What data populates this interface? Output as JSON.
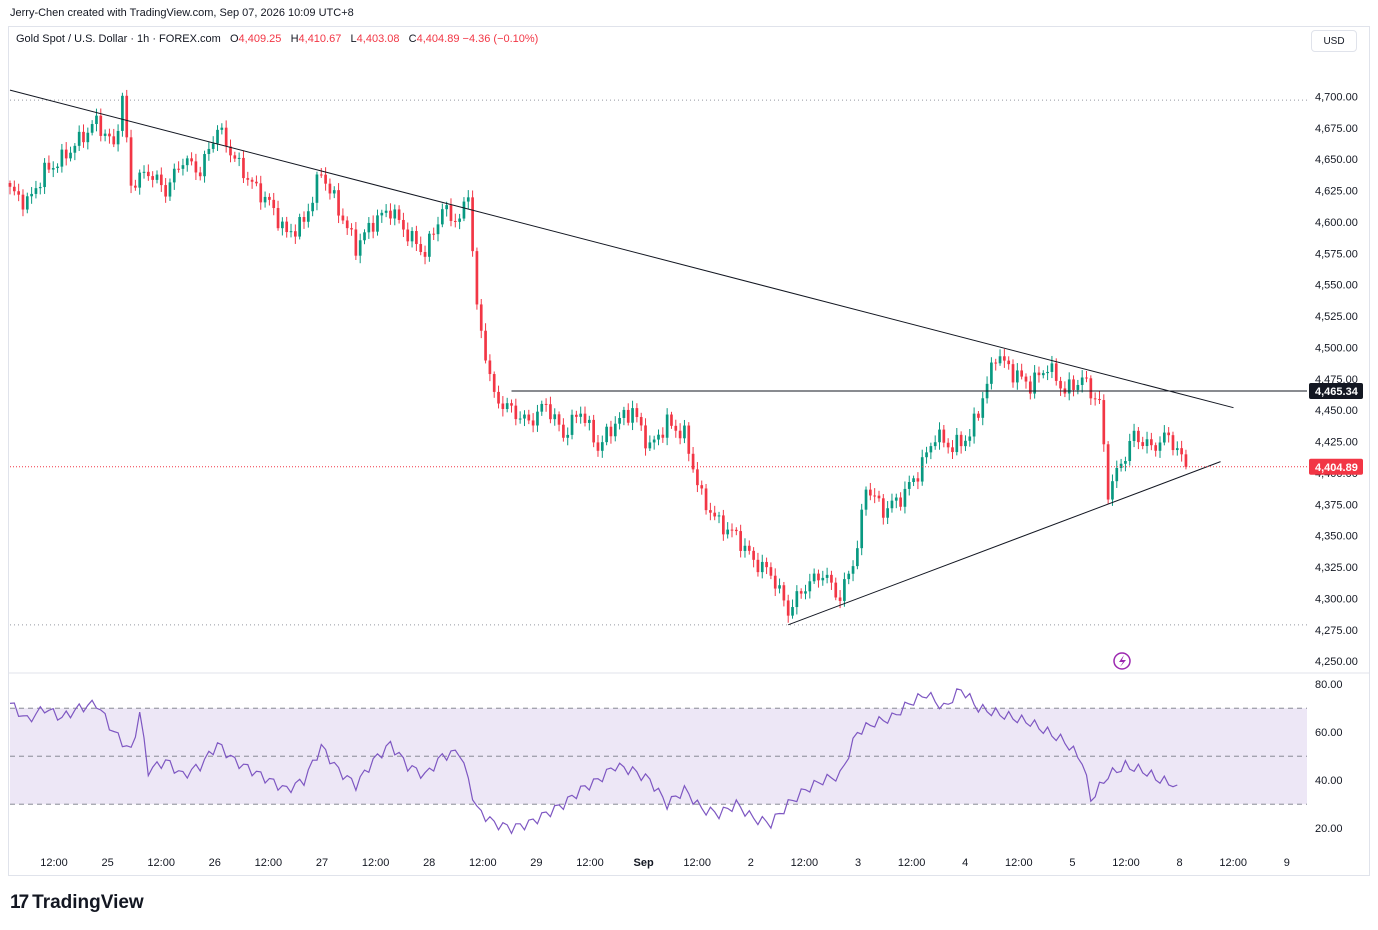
{
  "header": {
    "credit": "Jerry-Chen created with TradingView.com, Sep 07, 2026 10:09 UTC+8",
    "symbol": "Gold Spot / U.S. Dollar · 1h · FOREX.com",
    "ohlc": [
      {
        "k": "O",
        "v": "4,409.25"
      },
      {
        "k": "H",
        "v": "4,410.67"
      },
      {
        "k": "L",
        "v": "4,403.08"
      },
      {
        "k": "C",
        "v": "4,404.89"
      }
    ],
    "change": "−4.36 (−0.10%)",
    "currency": "USD"
  },
  "logo": {
    "mark": "17",
    "text": "TradingView"
  },
  "colors": {
    "up": "#089981",
    "down": "#f23645",
    "rsi": "#7e57c2",
    "rsi_band": "#ede7f6",
    "line": "#131722"
  },
  "chart_data": [
    {
      "type": "candlestick",
      "series": [
        {
          "name": "Gold Spot / U.S. Dollar",
          "ohlc_anchor_closes": [
            [
              0,
              4625
            ],
            [
              4,
              4615
            ],
            [
              8,
              4640
            ],
            [
              12,
              4650
            ],
            [
              16,
              4665
            ],
            [
              20,
              4680
            ],
            [
              24,
              4660
            ],
            [
              26,
              4698
            ],
            [
              28,
              4630
            ],
            [
              32,
              4640
            ],
            [
              36,
              4625
            ],
            [
              40,
              4650
            ],
            [
              44,
              4640
            ],
            [
              48,
              4675
            ],
            [
              52,
              4650
            ],
            [
              56,
              4630
            ],
            [
              60,
              4615
            ],
            [
              64,
              4590
            ],
            [
              68,
              4600
            ],
            [
              72,
              4640
            ],
            [
              76,
              4610
            ],
            [
              80,
              4580
            ],
            [
              84,
              4600
            ],
            [
              88,
              4610
            ],
            [
              92,
              4590
            ],
            [
              96,
              4575
            ],
            [
              100,
              4610
            ],
            [
              104,
              4600
            ],
            [
              106,
              4625
            ],
            [
              108,
              4530
            ],
            [
              112,
              4460
            ],
            [
              116,
              4450
            ],
            [
              120,
              4440
            ],
            [
              124,
              4455
            ],
            [
              128,
              4430
            ],
            [
              132,
              4450
            ],
            [
              136,
              4420
            ],
            [
              140,
              4440
            ],
            [
              144,
              4450
            ],
            [
              148,
              4420
            ],
            [
              152,
              4440
            ],
            [
              156,
              4430
            ],
            [
              160,
              4380
            ],
            [
              164,
              4360
            ],
            [
              168,
              4350
            ],
            [
              172,
              4330
            ],
            [
              176,
              4320
            ],
            [
              180,
              4290
            ],
            [
              184,
              4310
            ],
            [
              188,
              4320
            ],
            [
              192,
              4300
            ],
            [
              196,
              4340
            ],
            [
              198,
              4390
            ],
            [
              202,
              4370
            ],
            [
              206,
              4380
            ],
            [
              210,
              4400
            ],
            [
              214,
              4430
            ],
            [
              218,
              4420
            ],
            [
              222,
              4430
            ],
            [
              226,
              4470
            ],
            [
              228,
              4495
            ],
            [
              232,
              4480
            ],
            [
              236,
              4470
            ],
            [
              240,
              4485
            ],
            [
              244,
              4465
            ],
            [
              248,
              4475
            ],
            [
              252,
              4455
            ],
            [
              254,
              4385
            ],
            [
              256,
              4400
            ],
            [
              260,
              4430
            ],
            [
              264,
              4420
            ],
            [
              268,
              4430
            ],
            [
              272,
              4404.89
            ]
          ]
        }
      ],
      "x_ticks": [
        "12:00",
        "25",
        "12:00",
        "26",
        "12:00",
        "27",
        "12:00",
        "28",
        "12:00",
        "29",
        "12:00",
        "Sep",
        "12:00",
        "2",
        "12:00",
        "3",
        "12:00",
        "4",
        "12:00",
        "5",
        "12:00",
        "8",
        "12:00",
        "9"
      ],
      "y_ticks": [
        "4,700.00",
        "4,675.00",
        "4,650.00",
        "4,625.00",
        "4,600.00",
        "4,575.00",
        "4,550.00",
        "4,525.00",
        "4,500.00",
        "4,475.00",
        "4,450.00",
        "4,425.00",
        "4,400.00",
        "4,375.00",
        "4,350.00",
        "4,325.00",
        "4,300.00",
        "4,275.00",
        "4,250.00"
      ],
      "ylim": [
        4243,
        4733
      ],
      "price_labels": [
        {
          "price": 4465.34,
          "text": "4,465.34",
          "style": "dark"
        },
        {
          "price": 4404.89,
          "text": "4,404.89",
          "style": "red"
        }
      ],
      "lines": [
        {
          "name": "descending-trendline",
          "from": [
            0,
            4705
          ],
          "to": [
            283,
            4452
          ]
        },
        {
          "name": "ascending-trendline",
          "from": [
            180,
            4279
          ],
          "to": [
            280,
            4409
          ]
        },
        {
          "name": "horizontal-level",
          "from": [
            116,
            4465.34
          ],
          "to": [
            300,
            4465.34
          ]
        }
      ],
      "dotted_levels": [
        4697,
        4279
      ],
      "grid": false
    },
    {
      "type": "line",
      "series": [
        {
          "name": "RSI",
          "points": [
            [
              0,
              72
            ],
            [
              4,
              65
            ],
            [
              8,
              70
            ],
            [
              12,
              66
            ],
            [
              16,
              70
            ],
            [
              20,
              72
            ],
            [
              24,
              60
            ],
            [
              28,
              52
            ],
            [
              30,
              68
            ],
            [
              32,
              44
            ],
            [
              36,
              48
            ],
            [
              40,
              42
            ],
            [
              44,
              46
            ],
            [
              48,
              55
            ],
            [
              52,
              48
            ],
            [
              56,
              44
            ],
            [
              60,
              40
            ],
            [
              64,
              36
            ],
            [
              68,
              40
            ],
            [
              72,
              54
            ],
            [
              76,
              44
            ],
            [
              80,
              38
            ],
            [
              84,
              48
            ],
            [
              88,
              55
            ],
            [
              92,
              46
            ],
            [
              96,
              42
            ],
            [
              100,
              50
            ],
            [
              104,
              52
            ],
            [
              108,
              28
            ],
            [
              112,
              22
            ],
            [
              116,
              20
            ],
            [
              120,
              22
            ],
            [
              124,
              26
            ],
            [
              128,
              30
            ],
            [
              132,
              36
            ],
            [
              136,
              40
            ],
            [
              140,
              46
            ],
            [
              144,
              44
            ],
            [
              148,
              40
            ],
            [
              152,
              30
            ],
            [
              156,
              36
            ],
            [
              160,
              28
            ],
            [
              164,
              26
            ],
            [
              168,
              30
            ],
            [
              172,
              24
            ],
            [
              176,
              22
            ],
            [
              180,
              30
            ],
            [
              184,
              36
            ],
            [
              188,
              40
            ],
            [
              192,
              42
            ],
            [
              196,
              60
            ],
            [
              200,
              64
            ],
            [
              204,
              66
            ],
            [
              208,
              72
            ],
            [
              212,
              76
            ],
            [
              216,
              70
            ],
            [
              220,
              78
            ],
            [
              224,
              70
            ],
            [
              228,
              68
            ],
            [
              232,
              66
            ],
            [
              236,
              64
            ],
            [
              240,
              60
            ],
            [
              244,
              56
            ],
            [
              248,
              48
            ],
            [
              250,
              32
            ],
            [
              254,
              42
            ],
            [
              258,
              46
            ],
            [
              262,
              44
            ],
            [
              266,
              40
            ],
            [
              270,
              38
            ]
          ]
        }
      ],
      "y_ticks": [
        "80.00",
        "60.00",
        "40.00",
        "20.00"
      ],
      "ylim": [
        13,
        83
      ],
      "band": [
        30,
        70
      ],
      "midline": 50
    }
  ]
}
